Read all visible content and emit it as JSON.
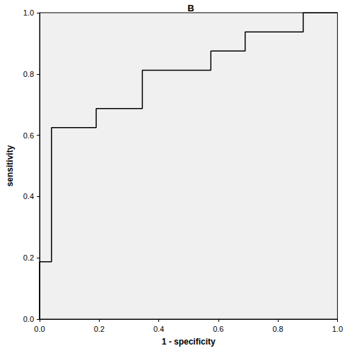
{
  "chart_data": {
    "type": "line",
    "title": "B",
    "x_label": "1 - specificity",
    "y_label": "sensitivity",
    "x": [
      0,
      0,
      0.04,
      0.04,
      0.19,
      0.19,
      0.345,
      0.345,
      0.575,
      0.575,
      0.69,
      0.69,
      0.885,
      0.885,
      1
    ],
    "values": [
      0,
      0.1875,
      0.1875,
      0.625,
      0.625,
      0.6875,
      0.6875,
      0.8125,
      0.8125,
      0.875,
      0.875,
      0.9375,
      0.9375,
      1,
      1
    ],
    "color": "#000000",
    "line_style": "solid",
    "xlim": [
      0,
      1
    ],
    "ylim": [
      0,
      1
    ],
    "xticks": [
      {
        "value": 0,
        "label": "0.0"
      },
      0.2,
      0.4,
      0.6,
      0.8,
      {
        "value": 1,
        "label": "1.0"
      }
    ],
    "yticks": [
      {
        "value": 0,
        "label": "0.0"
      },
      0.2,
      0.4,
      0.6,
      0.8,
      {
        "value": 1,
        "label": "1.0"
      }
    ],
    "grid": false
  }
}
